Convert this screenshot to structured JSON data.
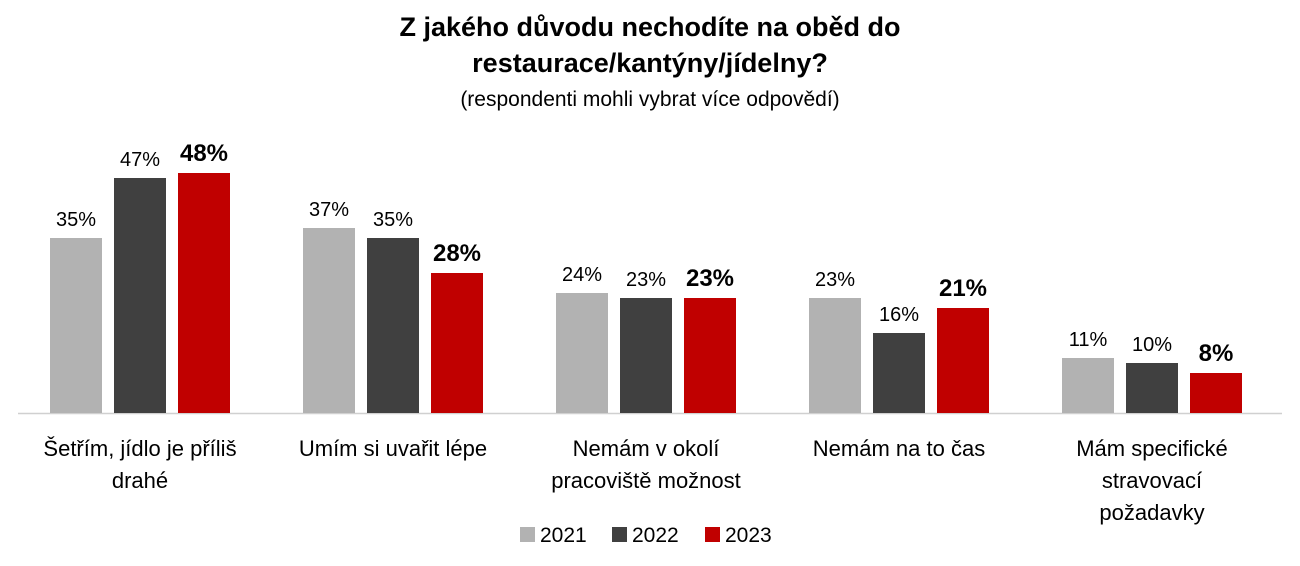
{
  "chart_data": {
    "type": "bar",
    "title_line1": "Z jakého důvodu nechodíte na oběd do",
    "title_line2": "restaurace/kantýny/jídelny?",
    "subtitle": "(respondenti mohli vybrat více odpovědí)",
    "categories": [
      [
        "Šetřím, jídlo je příliš",
        "drahé"
      ],
      [
        "Umím si uvařit lépe"
      ],
      [
        "Nemám v okolí",
        "pracoviště možnost"
      ],
      [
        "Nemám na to čas"
      ],
      [
        "Mám specifické",
        "stravovací",
        "požadavky"
      ]
    ],
    "series": [
      {
        "name": "2021",
        "color": "#b2b2b2",
        "values": [
          35,
          37,
          24,
          23,
          11
        ],
        "labels": [
          "35%",
          "37%",
          "24%",
          "23%",
          "11%"
        ],
        "bold": false
      },
      {
        "name": "2022",
        "color": "#404040",
        "values": [
          47,
          35,
          23,
          16,
          10
        ],
        "labels": [
          "47%",
          "35%",
          "23%",
          "16%",
          "10%"
        ],
        "bold": false
      },
      {
        "name": "2023",
        "color": "#c00000",
        "values": [
          48,
          28,
          23,
          21,
          8
        ],
        "labels": [
          "48%",
          "28%",
          "23%",
          "21%",
          "8%"
        ],
        "bold": true
      }
    ],
    "ylim": [
      0,
      50
    ],
    "grid": false,
    "legend_position": "bottom"
  }
}
